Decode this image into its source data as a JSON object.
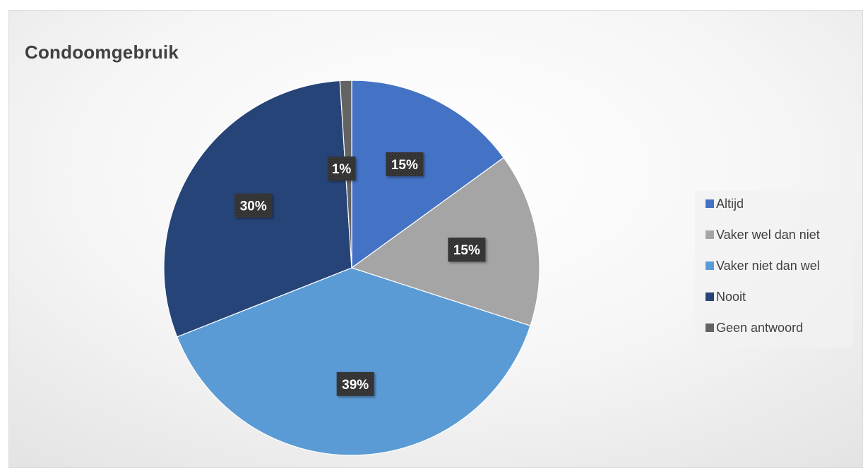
{
  "chart_data": {
    "type": "pie",
    "title": "Condoomgebruik",
    "categories": [
      "Altijd",
      "Vaker wel dan niet",
      "Vaker niet dan wel",
      "Nooit",
      "Geen antwoord"
    ],
    "values": [
      15,
      15,
      39,
      30,
      1
    ],
    "data_labels": [
      "15%",
      "15%",
      "39%",
      "30%",
      "1%"
    ],
    "colors": [
      "#4472C4",
      "#A5A5A5",
      "#5B9BD5",
      "#264478",
      "#636363"
    ],
    "legend_position": "right"
  }
}
